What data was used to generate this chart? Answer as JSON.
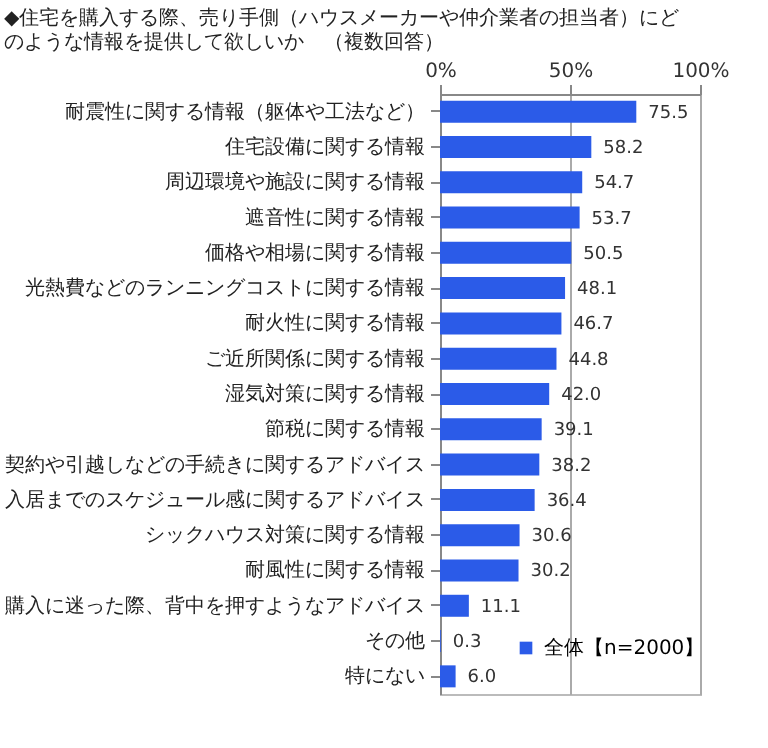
{
  "chart_data": {
    "type": "bar",
    "orientation": "horizontal",
    "title": "◆住宅を購入する際、売り手側（ハウスメーカーや仲介業者の担当者）にどのような情報を提供して欲しいか　（複数回答）",
    "categories": [
      "耐震性に関する情報（躯体や工法など）",
      "住宅設備に関する情報",
      "周辺環境や施設に関する情報",
      "遮音性に関する情報",
      "価格や相場に関する情報",
      "光熱費などのランニングコストに関する情報",
      "耐火性に関する情報",
      "ご近所関係に関する情報",
      "湿気対策に関する情報",
      "節税に関する情報",
      "契約や引越しなどの手続きに関するアドバイス",
      "入居までのスケジュール感に関するアドバイス",
      "シックハウス対策に関する情報",
      "耐風性に関する情報",
      "購入に迷った際、背中を押すようなアドバイス",
      "その他",
      "特にない"
    ],
    "series": [
      {
        "name": "全体【n=2000】",
        "color": "#2b5be8",
        "values": [
          75.5,
          58.2,
          54.7,
          53.7,
          50.5,
          48.1,
          46.7,
          44.8,
          42.0,
          39.1,
          38.2,
          36.4,
          30.6,
          30.2,
          11.1,
          0.3,
          6.0
        ],
        "value_labels": [
          "75.5",
          "58.2",
          "54.7",
          "53.7",
          "50.5",
          "48.1",
          "46.7",
          "44.8",
          "42.0",
          "39.1",
          "38.2",
          "36.4",
          "30.6",
          "30.2",
          "11.1",
          "0.3",
          "6.0"
        ]
      }
    ],
    "xlim": [
      0,
      100
    ],
    "xticks": [
      {
        "value": 0,
        "label": "0%"
      },
      {
        "value": 50,
        "label": "50%"
      },
      {
        "value": 100,
        "label": "100%"
      }
    ],
    "grid": "x",
    "legend": "bottom right"
  }
}
